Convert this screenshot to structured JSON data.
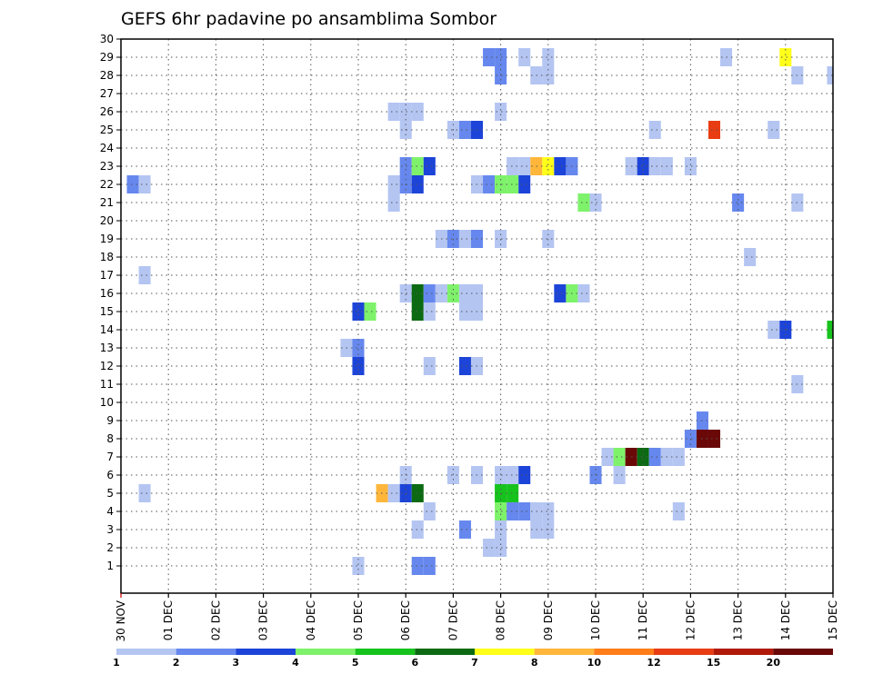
{
  "chart_data": {
    "type": "heatmap",
    "title": "GEFS 6hr padavine po ansamblima Sombor",
    "xlabel": "",
    "ylabel": "",
    "ylim": [
      0,
      30
    ],
    "grid": true,
    "y_ticks": [
      "1",
      "2",
      "3",
      "4",
      "5",
      "6",
      "7",
      "8",
      "9",
      "10",
      "11",
      "12",
      "13",
      "14",
      "15",
      "16",
      "17",
      "18",
      "19",
      "20",
      "21",
      "22",
      "23",
      "24",
      "25",
      "26",
      "27",
      "28",
      "29",
      "30"
    ],
    "x_ticks": [
      "30 NOV",
      "01 DEC",
      "02 DEC",
      "03 DEC",
      "04 DEC",
      "05 DEC",
      "06 DEC",
      "07 DEC",
      "08 DEC",
      "09 DEC",
      "10 DEC",
      "11 DEC",
      "12 DEC",
      "13 DEC",
      "14 DEC",
      "15 DEC"
    ],
    "legend_labels": [
      "1",
      "2",
      "3",
      "4",
      "5",
      "6",
      "7",
      "8",
      "10",
      "12",
      "15",
      "20"
    ],
    "levels": [
      1,
      2,
      3,
      4,
      5,
      6,
      7,
      8,
      10,
      12,
      15,
      20
    ],
    "level_colors": [
      "#b4c5f2",
      "#6688ee",
      "#1d44d8",
      "#7ef26a",
      "#16c31d",
      "#0b6a12",
      "#ffff1a",
      "#ffb63a",
      "#ff7e1a",
      "#e83c12",
      "#b01a08",
      "#6a0808"
    ],
    "cells_note": "each cell = [x_in_days_from_30NOV_00Z (6h step = 0.25), ensemble_member_y, level_index]",
    "cells": [
      [
        0.25,
        22,
        1
      ],
      [
        0.5,
        22,
        0
      ],
      [
        0.5,
        17,
        0
      ],
      [
        0.5,
        5,
        0
      ],
      [
        5.0,
        1,
        0
      ],
      [
        4.75,
        13,
        0
      ],
      [
        5.0,
        13,
        1
      ],
      [
        5.0,
        12,
        2
      ],
      [
        5.0,
        15,
        2
      ],
      [
        5.25,
        15,
        3
      ],
      [
        5.5,
        5,
        7
      ],
      [
        5.75,
        5,
        0
      ],
      [
        6.0,
        5,
        2
      ],
      [
        6.25,
        5,
        5
      ],
      [
        6.0,
        6,
        0
      ],
      [
        6.5,
        4,
        0
      ],
      [
        6.25,
        3,
        0
      ],
      [
        6.25,
        1,
        1
      ],
      [
        6.5,
        1,
        1
      ],
      [
        6.5,
        12,
        0
      ],
      [
        6.0,
        16,
        0
      ],
      [
        6.25,
        16,
        5
      ],
      [
        6.5,
        16,
        1
      ],
      [
        6.75,
        16,
        0
      ],
      [
        7.0,
        16,
        3
      ],
      [
        7.25,
        16,
        0
      ],
      [
        7.5,
        16,
        0
      ],
      [
        6.25,
        15,
        5
      ],
      [
        6.5,
        15,
        0
      ],
      [
        7.25,
        15,
        0
      ],
      [
        7.5,
        15,
        0
      ],
      [
        7.25,
        12,
        2
      ],
      [
        7.5,
        12,
        0
      ],
      [
        7.25,
        3,
        1
      ],
      [
        7.0,
        6,
        0
      ],
      [
        7.5,
        6,
        0
      ],
      [
        6.75,
        19,
        0
      ],
      [
        7.0,
        19,
        1
      ],
      [
        7.25,
        19,
        0
      ],
      [
        7.5,
        19,
        1
      ],
      [
        5.75,
        26,
        0
      ],
      [
        6.0,
        26,
        0
      ],
      [
        6.25,
        26,
        0
      ],
      [
        6.0,
        25,
        0
      ],
      [
        5.75,
        22,
        0
      ],
      [
        6.0,
        22,
        1
      ],
      [
        6.25,
        22,
        2
      ],
      [
        5.75,
        21,
        0
      ],
      [
        6.0,
        23,
        1
      ],
      [
        6.25,
        23,
        3
      ],
      [
        6.5,
        23,
        2
      ],
      [
        7.0,
        25,
        0
      ],
      [
        7.25,
        25,
        1
      ],
      [
        7.5,
        25,
        2
      ],
      [
        7.5,
        22,
        0
      ],
      [
        7.75,
        22,
        1
      ],
      [
        8.0,
        22,
        3
      ],
      [
        8.25,
        22,
        3
      ],
      [
        8.5,
        22,
        2
      ],
      [
        7.75,
        29,
        1
      ],
      [
        8.0,
        29,
        1
      ],
      [
        8.0,
        28,
        1
      ],
      [
        8.0,
        26,
        0
      ],
      [
        8.0,
        19,
        0
      ],
      [
        8.25,
        23,
        0
      ],
      [
        8.5,
        23,
        0
      ],
      [
        8.75,
        23,
        7
      ],
      [
        9.0,
        23,
        6
      ],
      [
        9.25,
        23,
        2
      ],
      [
        9.5,
        23,
        1
      ],
      [
        8.5,
        29,
        0
      ],
      [
        8.75,
        28,
        0
      ],
      [
        9.0,
        28,
        0
      ],
      [
        9.0,
        29,
        0
      ],
      [
        9.0,
        19,
        0
      ],
      [
        9.25,
        16,
        2
      ],
      [
        9.5,
        16,
        3
      ],
      [
        9.75,
        16,
        0
      ],
      [
        9.75,
        21,
        3
      ],
      [
        10.0,
        21,
        0
      ],
      [
        8.0,
        6,
        0
      ],
      [
        8.25,
        6,
        0
      ],
      [
        8.5,
        6,
        2
      ],
      [
        8.0,
        5,
        4
      ],
      [
        8.25,
        5,
        4
      ],
      [
        8.0,
        4,
        3
      ],
      [
        8.25,
        4,
        1
      ],
      [
        8.5,
        4,
        1
      ],
      [
        8.75,
        4,
        0
      ],
      [
        9.0,
        4,
        0
      ],
      [
        8.0,
        3,
        0
      ],
      [
        8.75,
        3,
        0
      ],
      [
        9.0,
        3,
        0
      ],
      [
        7.75,
        2,
        0
      ],
      [
        8.0,
        2,
        0
      ],
      [
        10.0,
        6,
        1
      ],
      [
        10.5,
        6,
        0
      ],
      [
        10.25,
        7,
        0
      ],
      [
        10.5,
        7,
        3
      ],
      [
        10.75,
        7,
        11
      ],
      [
        11.0,
        7,
        5
      ],
      [
        11.25,
        7,
        1
      ],
      [
        11.5,
        7,
        0
      ],
      [
        11.75,
        7,
        0
      ],
      [
        10.75,
        23,
        0
      ],
      [
        11.0,
        23,
        2
      ],
      [
        11.25,
        23,
        0
      ],
      [
        11.5,
        23,
        0
      ],
      [
        12.0,
        23,
        0
      ],
      [
        11.25,
        25,
        0
      ],
      [
        11.75,
        4,
        0
      ],
      [
        12.0,
        8,
        1
      ],
      [
        12.25,
        8,
        11
      ],
      [
        12.5,
        8,
        11
      ],
      [
        12.25,
        9,
        1
      ],
      [
        12.5,
        25,
        9
      ],
      [
        12.75,
        29,
        0
      ],
      [
        13.0,
        21,
        1
      ],
      [
        13.25,
        18,
        0
      ],
      [
        13.75,
        25,
        0
      ],
      [
        14.0,
        29,
        6
      ],
      [
        14.25,
        28,
        0
      ],
      [
        14.25,
        21,
        0
      ],
      [
        14.25,
        11,
        0
      ],
      [
        13.75,
        14,
        0
      ],
      [
        14.0,
        14,
        2
      ],
      [
        15.0,
        28,
        0
      ],
      [
        15.0,
        14,
        4
      ]
    ]
  }
}
